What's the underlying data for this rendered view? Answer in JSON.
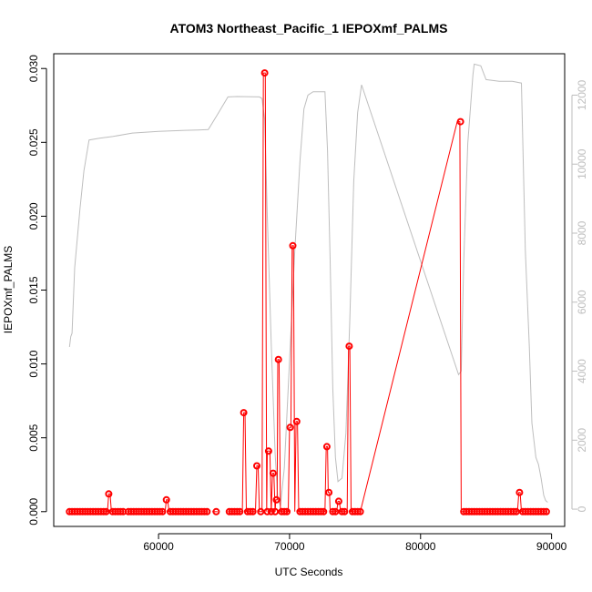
{
  "chart_data": {
    "type": "line",
    "title": "ATOM3 Northeast_Pacific_1 IEPOXmf_PALMS",
    "xlabel": "UTC Seconds",
    "ylabel": "IEPOXmf_PALMS",
    "xlim": [
      52000,
      91000
    ],
    "ylim": [
      -0.001,
      0.031
    ],
    "y2lim": [
      -500,
      13200
    ],
    "x_ticks": [
      60000,
      70000,
      80000,
      90000
    ],
    "x_tick_labels": [
      "60000",
      "70000",
      "80000",
      "90000"
    ],
    "y_ticks": [
      0.0,
      0.005,
      0.01,
      0.015,
      0.02,
      0.025,
      0.03
    ],
    "y_tick_labels": [
      "0.000",
      "0.005",
      "0.010",
      "0.015",
      "0.020",
      "0.025",
      "0.030"
    ],
    "y2_ticks": [
      0,
      2000,
      4000,
      6000,
      8000,
      10000,
      12000
    ],
    "y2_tick_labels": [
      "0",
      "2000",
      "4000",
      "6000",
      "8000",
      "10000",
      "12000"
    ],
    "grid": false,
    "colors": {
      "series": "#ff0000",
      "altitude": "#bebebe",
      "axis": "#000000"
    },
    "series": [
      {
        "values_description": "",
        "segments": [
          [
            [
              53200,
              0
            ],
            [
              56100,
              0
            ],
            [
              56200,
              0.0012
            ],
            [
              56300,
              0.0012
            ],
            [
              56400,
              0
            ],
            [
              57400,
              0
            ]
          ],
          [
            [
              57600,
              0
            ],
            [
              60500,
              0
            ],
            [
              60600,
              0.0008
            ],
            [
              60700,
              0.0008
            ],
            [
              60800,
              0
            ],
            [
              63700,
              0
            ]
          ],
          [
            [
              64100,
              0
            ],
            [
              64500,
              0
            ]
          ],
          [
            [
              65300,
              0
            ],
            [
              66400,
              0
            ],
            [
              66500,
              0.0067
            ],
            [
              66600,
              0.0067
            ],
            [
              66700,
              0
            ],
            [
              67400,
              0
            ],
            [
              67500,
              0.0031
            ],
            [
              67600,
              0.0031
            ],
            [
              67700,
              0
            ],
            [
              67900,
              0
            ],
            [
              68000,
              0.0297
            ],
            [
              68150,
              0.0297
            ],
            [
              68250,
              0
            ],
            [
              68300,
              0.0041
            ],
            [
              68500,
              0.0041
            ],
            [
              68600,
              0
            ],
            [
              68700,
              0.0026
            ],
            [
              68800,
              0.0026
            ],
            [
              68900,
              0
            ],
            [
              68950,
              0.0008
            ],
            [
              69050,
              0.0008
            ],
            [
              69100,
              0.0103
            ],
            [
              69200,
              0.0103
            ],
            [
              69300,
              0
            ],
            [
              69900,
              0
            ],
            [
              70000,
              0.0057
            ],
            [
              70100,
              0.0057
            ],
            [
              70200,
              0.018
            ],
            [
              70300,
              0.018
            ],
            [
              70400,
              0
            ],
            [
              70500,
              0.0061
            ],
            [
              70600,
              0.0061
            ],
            [
              70700,
              0
            ],
            [
              71300,
              0
            ],
            [
              72700,
              0
            ],
            [
              72800,
              0.0044
            ],
            [
              72900,
              0.0044
            ],
            [
              72950,
              0.0013
            ],
            [
              73050,
              0.0013
            ],
            [
              73100,
              0
            ],
            [
              73600,
              0
            ],
            [
              73700,
              0.0007
            ],
            [
              73800,
              0.0007
            ],
            [
              73900,
              0
            ],
            [
              74400,
              0
            ],
            [
              74500,
              0.0112
            ],
            [
              74600,
              0.0112
            ],
            [
              74700,
              0
            ],
            [
              75400,
              0
            ],
            [
              82800,
              0.0264
            ],
            [
              83000,
              0.0264
            ],
            [
              83100,
              0
            ],
            [
              87400,
              0
            ],
            [
              87500,
              0.0013
            ],
            [
              87600,
              0.0013
            ],
            [
              87700,
              0
            ],
            [
              89600,
              0
            ]
          ]
        ]
      }
    ],
    "markers": [
      [
        53200,
        0
      ],
      [
        53400,
        0
      ],
      [
        53600,
        0
      ],
      [
        53800,
        0
      ],
      [
        54000,
        0
      ],
      [
        54200,
        0
      ],
      [
        54400,
        0
      ],
      [
        54600,
        0
      ],
      [
        54800,
        0
      ],
      [
        55000,
        0
      ],
      [
        55200,
        0
      ],
      [
        55400,
        0
      ],
      [
        55600,
        0
      ],
      [
        55800,
        0
      ],
      [
        56000,
        0
      ],
      [
        56200,
        0.0012
      ],
      [
        56500,
        0
      ],
      [
        56700,
        0
      ],
      [
        56900,
        0
      ],
      [
        57100,
        0
      ],
      [
        57300,
        0
      ],
      [
        57700,
        0
      ],
      [
        57900,
        0
      ],
      [
        58100,
        0
      ],
      [
        58300,
        0
      ],
      [
        58500,
        0
      ],
      [
        58700,
        0
      ],
      [
        58900,
        0
      ],
      [
        59100,
        0
      ],
      [
        59300,
        0
      ],
      [
        59500,
        0
      ],
      [
        59700,
        0
      ],
      [
        59900,
        0
      ],
      [
        60100,
        0
      ],
      [
        60300,
        0
      ],
      [
        60600,
        0.0008
      ],
      [
        60900,
        0
      ],
      [
        61100,
        0
      ],
      [
        61300,
        0
      ],
      [
        61500,
        0
      ],
      [
        61700,
        0
      ],
      [
        61900,
        0
      ],
      [
        62100,
        0
      ],
      [
        62300,
        0
      ],
      [
        62500,
        0
      ],
      [
        62700,
        0
      ],
      [
        62900,
        0
      ],
      [
        63100,
        0
      ],
      [
        63300,
        0
      ],
      [
        63500,
        0
      ],
      [
        63700,
        0
      ],
      [
        64400,
        0
      ],
      [
        65400,
        0
      ],
      [
        65600,
        0
      ],
      [
        65800,
        0
      ],
      [
        66000,
        0
      ],
      [
        66200,
        0
      ],
      [
        66500,
        0.0067
      ],
      [
        66800,
        0
      ],
      [
        67000,
        0
      ],
      [
        67200,
        0
      ],
      [
        67500,
        0.0031
      ],
      [
        67800,
        0
      ],
      [
        68100,
        0.0297
      ],
      [
        68300,
        0
      ],
      [
        68400,
        0.0041
      ],
      [
        68600,
        0
      ],
      [
        68750,
        0.0026
      ],
      [
        68900,
        0
      ],
      [
        69000,
        0.0008
      ],
      [
        69150,
        0.0103
      ],
      [
        69400,
        0
      ],
      [
        69600,
        0
      ],
      [
        69800,
        0
      ],
      [
        70050,
        0.0057
      ],
      [
        70250,
        0.018
      ],
      [
        70550,
        0.0061
      ],
      [
        70800,
        0
      ],
      [
        71000,
        0
      ],
      [
        71200,
        0
      ],
      [
        71400,
        0
      ],
      [
        71600,
        0
      ],
      [
        71800,
        0
      ],
      [
        72000,
        0
      ],
      [
        72200,
        0
      ],
      [
        72400,
        0
      ],
      [
        72600,
        0
      ],
      [
        72850,
        0.0044
      ],
      [
        73000,
        0.0013
      ],
      [
        73300,
        0
      ],
      [
        73500,
        0
      ],
      [
        73750,
        0.0007
      ],
      [
        74000,
        0
      ],
      [
        74200,
        0
      ],
      [
        74550,
        0.0112
      ],
      [
        74800,
        0
      ],
      [
        75000,
        0
      ],
      [
        75200,
        0
      ],
      [
        75400,
        0
      ],
      [
        83050,
        0.0264
      ],
      [
        83300,
        0
      ],
      [
        83500,
        0
      ],
      [
        83700,
        0
      ],
      [
        83900,
        0
      ],
      [
        84100,
        0
      ],
      [
        84300,
        0
      ],
      [
        84500,
        0
      ],
      [
        84700,
        0
      ],
      [
        84900,
        0
      ],
      [
        85100,
        0
      ],
      [
        85300,
        0
      ],
      [
        85500,
        0
      ],
      [
        85700,
        0
      ],
      [
        85900,
        0
      ],
      [
        86100,
        0
      ],
      [
        86300,
        0
      ],
      [
        86500,
        0
      ],
      [
        86700,
        0
      ],
      [
        86900,
        0
      ],
      [
        87100,
        0
      ],
      [
        87300,
        0
      ],
      [
        87550,
        0.0013
      ],
      [
        87800,
        0
      ],
      [
        88000,
        0
      ],
      [
        88200,
        0
      ],
      [
        88400,
        0
      ],
      [
        88600,
        0
      ],
      [
        88800,
        0
      ],
      [
        89000,
        0
      ],
      [
        89200,
        0
      ],
      [
        89400,
        0
      ],
      [
        89600,
        0
      ]
    ],
    "altitude": [
      [
        53200,
        4700
      ],
      [
        53300,
        5000
      ],
      [
        53400,
        5100
      ],
      [
        53600,
        7000
      ],
      [
        54000,
        8700
      ],
      [
        54300,
        9800
      ],
      [
        54700,
        10700
      ],
      [
        55500,
        10750
      ],
      [
        56500,
        10800
      ],
      [
        58000,
        10900
      ],
      [
        60000,
        10950
      ],
      [
        62000,
        10980
      ],
      [
        63000,
        10990
      ],
      [
        63800,
        11000
      ],
      [
        64600,
        11500
      ],
      [
        65300,
        11950
      ],
      [
        66000,
        11960
      ],
      [
        67700,
        11950
      ],
      [
        67900,
        11900
      ],
      [
        68100,
        11300
      ],
      [
        68300,
        8500
      ],
      [
        68600,
        4800
      ],
      [
        68900,
        1600
      ],
      [
        69100,
        300
      ],
      [
        69300,
        100
      ],
      [
        69600,
        1200
      ],
      [
        70000,
        4300
      ],
      [
        70400,
        7500
      ],
      [
        70800,
        10100
      ],
      [
        71100,
        11600
      ],
      [
        71400,
        12000
      ],
      [
        71800,
        12100
      ],
      [
        72700,
        12100
      ],
      [
        72900,
        10400
      ],
      [
        73100,
        7200
      ],
      [
        73300,
        3500
      ],
      [
        73500,
        1500
      ],
      [
        73700,
        800
      ],
      [
        74000,
        900
      ],
      [
        74300,
        2200
      ],
      [
        74600,
        5500
      ],
      [
        74900,
        9500
      ],
      [
        75200,
        11500
      ],
      [
        75500,
        12300
      ],
      [
        82900,
        3900
      ],
      [
        83100,
        4000
      ],
      [
        83300,
        7200
      ],
      [
        83600,
        10600
      ],
      [
        84000,
        12600
      ],
      [
        84100,
        12900
      ],
      [
        84600,
        12850
      ],
      [
        85000,
        12450
      ],
      [
        86000,
        12400
      ],
      [
        87000,
        12400
      ],
      [
        87700,
        12350
      ],
      [
        88000,
        7500
      ],
      [
        88300,
        4700
      ],
      [
        88500,
        2500
      ],
      [
        88800,
        1500
      ],
      [
        89000,
        1300
      ],
      [
        89200,
        900
      ],
      [
        89400,
        400
      ],
      [
        89550,
        250
      ],
      [
        89700,
        200
      ]
    ]
  }
}
